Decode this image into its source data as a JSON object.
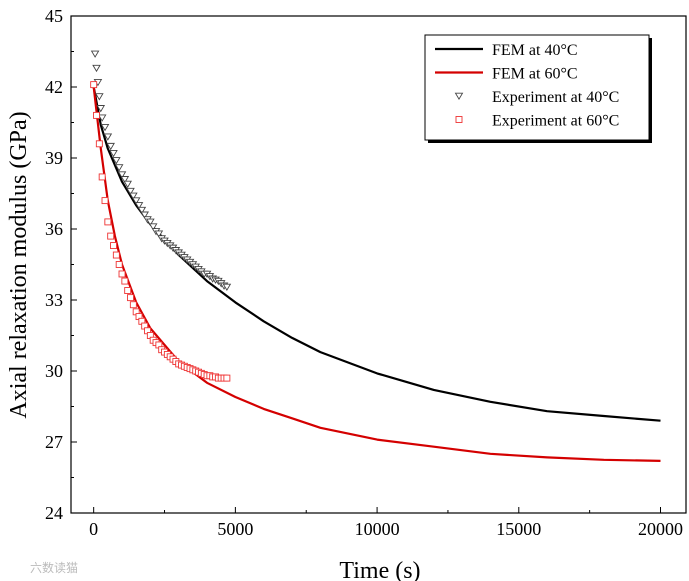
{
  "chart_data": {
    "type": "line",
    "xlabel": "Time (s)",
    "ylabel": "Axial relaxation modulus (GPa)",
    "xlim": [
      -800,
      20900
    ],
    "ylim": [
      24,
      45
    ],
    "xticks": [
      0,
      5000,
      10000,
      15000,
      20000
    ],
    "yticks": [
      24,
      27,
      30,
      33,
      36,
      39,
      42,
      45
    ],
    "legend_position": "top-right",
    "grid": false,
    "series": [
      {
        "name": "FEM at 40°C",
        "kind": "line",
        "color": "#000000",
        "x": [
          0,
          250,
          500,
          1000,
          1500,
          2000,
          3000,
          4000,
          5000,
          6000,
          7000,
          8000,
          10000,
          12000,
          14000,
          16000,
          18000,
          20000
        ],
        "y": [
          42.0,
          40.4,
          39.4,
          38.0,
          37.0,
          36.2,
          34.9,
          33.8,
          32.9,
          32.1,
          31.4,
          30.8,
          29.9,
          29.2,
          28.7,
          28.3,
          28.1,
          27.9
        ]
      },
      {
        "name": "FEM at 60°C",
        "kind": "line",
        "color": "#d40000",
        "x": [
          0,
          250,
          500,
          750,
          1000,
          1500,
          2000,
          3000,
          4000,
          5000,
          6000,
          7000,
          8000,
          10000,
          12000,
          14000,
          16000,
          18000,
          20000
        ],
        "y": [
          42.0,
          39.4,
          37.2,
          35.7,
          34.5,
          32.9,
          31.8,
          30.4,
          29.5,
          28.9,
          28.4,
          28.0,
          27.6,
          27.1,
          26.8,
          26.5,
          26.35,
          26.25,
          26.2
        ]
      },
      {
        "name": "Experiment at 40°C",
        "kind": "scatter",
        "marker": "triangle-down",
        "color": "#444444",
        "x": [
          50,
          100,
          150,
          200,
          250,
          300,
          400,
          500,
          600,
          700,
          800,
          900,
          1000,
          1100,
          1200,
          1300,
          1400,
          1500,
          1600,
          1700,
          1800,
          1900,
          2000,
          2100,
          2200,
          2300,
          2400,
          2500,
          2600,
          2700,
          2800,
          2900,
          3000,
          3100,
          3200,
          3300,
          3400,
          3500,
          3600,
          3700,
          3800,
          3900,
          4000,
          4100,
          4200,
          4300,
          4400,
          4500,
          4600,
          4700
        ],
        "y": [
          43.4,
          42.8,
          42.2,
          41.6,
          41.1,
          40.7,
          40.3,
          39.9,
          39.5,
          39.2,
          38.9,
          38.6,
          38.3,
          38.1,
          37.9,
          37.6,
          37.4,
          37.2,
          37.0,
          36.8,
          36.6,
          36.4,
          36.3,
          36.1,
          35.9,
          35.8,
          35.6,
          35.5,
          35.4,
          35.3,
          35.2,
          35.1,
          35.0,
          34.9,
          34.8,
          34.7,
          34.6,
          34.5,
          34.4,
          34.3,
          34.2,
          34.1,
          34.1,
          34.0,
          33.9,
          33.85,
          33.8,
          33.7,
          33.6,
          33.55
        ]
      },
      {
        "name": "Experiment at 60°C",
        "kind": "scatter",
        "marker": "square",
        "color": "#ee3333",
        "x": [
          0,
          100,
          200,
          300,
          400,
          500,
          600,
          700,
          800,
          900,
          1000,
          1100,
          1200,
          1300,
          1400,
          1500,
          1600,
          1700,
          1800,
          1900,
          2000,
          2100,
          2200,
          2300,
          2400,
          2500,
          2600,
          2700,
          2800,
          2900,
          3000,
          3100,
          3200,
          3300,
          3400,
          3500,
          3600,
          3700,
          3800,
          3900,
          4000,
          4100,
          4200,
          4300,
          4400,
          4500,
          4600,
          4700
        ],
        "y": [
          42.1,
          40.8,
          39.6,
          38.2,
          37.2,
          36.3,
          35.7,
          35.3,
          34.9,
          34.5,
          34.1,
          33.8,
          33.4,
          33.1,
          32.8,
          32.5,
          32.3,
          32.1,
          31.9,
          31.7,
          31.5,
          31.3,
          31.2,
          31.1,
          30.9,
          30.8,
          30.7,
          30.6,
          30.5,
          30.4,
          30.3,
          30.25,
          30.2,
          30.15,
          30.1,
          30.05,
          30.0,
          29.95,
          29.9,
          29.85,
          29.8,
          29.8,
          29.75,
          29.75,
          29.7,
          29.7,
          29.7,
          29.7
        ]
      }
    ]
  },
  "watermark": "六数读猫"
}
